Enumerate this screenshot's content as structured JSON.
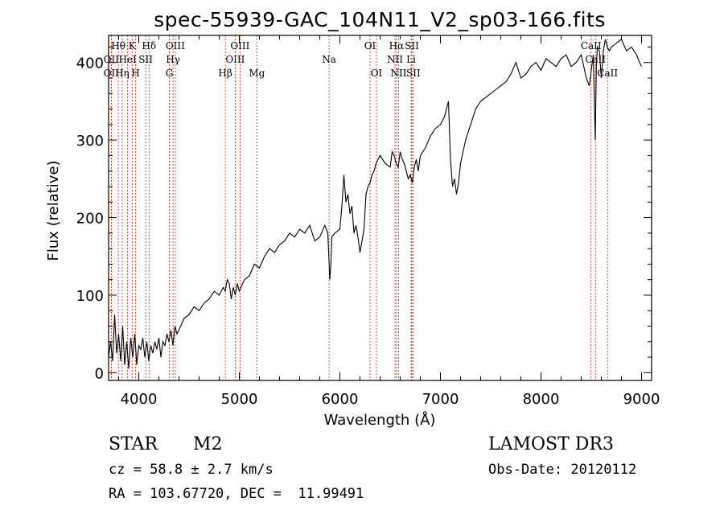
{
  "chart_data": {
    "type": "line",
    "title": "spec-55939-GAC_104N11_V2_sp03-166.fits",
    "xlabel": "Wavelength (Å)",
    "ylabel": "Flux (relative)",
    "xlim": [
      3700,
      9100
    ],
    "ylim": [
      -10,
      435
    ],
    "xticks": [
      4000,
      5000,
      6000,
      7000,
      8000,
      9000
    ],
    "yticks": [
      0,
      100,
      200,
      300,
      400
    ],
    "series": [
      {
        "name": "flux",
        "x": [
          3700,
          3720,
          3740,
          3760,
          3780,
          3800,
          3820,
          3840,
          3860,
          3880,
          3900,
          3920,
          3940,
          3960,
          3980,
          4000,
          4020,
          4040,
          4060,
          4080,
          4100,
          4120,
          4140,
          4160,
          4180,
          4200,
          4220,
          4240,
          4260,
          4280,
          4300,
          4320,
          4340,
          4360,
          4380,
          4400,
          4450,
          4500,
          4550,
          4600,
          4650,
          4700,
          4750,
          4800,
          4840,
          4860,
          4880,
          4900,
          4920,
          4940,
          4960,
          4980,
          5000,
          5050,
          5100,
          5150,
          5200,
          5250,
          5300,
          5350,
          5400,
          5450,
          5500,
          5550,
          5600,
          5650,
          5700,
          5750,
          5800,
          5850,
          5880,
          5900,
          5910,
          5920,
          5950,
          6000,
          6020,
          6040,
          6060,
          6080,
          6100,
          6120,
          6140,
          6160,
          6180,
          6200,
          6220,
          6240,
          6260,
          6280,
          6300,
          6320,
          6340,
          6360,
          6380,
          6400,
          6450,
          6500,
          6520,
          6540,
          6560,
          6580,
          6600,
          6620,
          6640,
          6660,
          6680,
          6700,
          6720,
          6740,
          6760,
          6780,
          6800,
          6850,
          6900,
          6950,
          7000,
          7020,
          7040,
          7060,
          7080,
          7100,
          7120,
          7140,
          7160,
          7180,
          7200,
          7250,
          7300,
          7350,
          7400,
          7450,
          7500,
          7550,
          7600,
          7650,
          7700,
          7750,
          7800,
          7850,
          7900,
          7950,
          8000,
          8050,
          8100,
          8150,
          8200,
          8250,
          8300,
          8350,
          8400,
          8450,
          8480,
          8500,
          8520,
          8540,
          8550,
          8560,
          8580,
          8600,
          8620,
          8640,
          8660,
          8680,
          8700,
          8750,
          8800,
          8850,
          8900,
          8950,
          8980,
          9000
        ],
        "values": [
          20,
          40,
          15,
          75,
          25,
          50,
          15,
          60,
          10,
          40,
          5,
          45,
          20,
          50,
          10,
          35,
          30,
          45,
          20,
          40,
          15,
          35,
          25,
          40,
          30,
          45,
          20,
          40,
          35,
          50,
          40,
          55,
          35,
          60,
          50,
          55,
          70,
          75,
          85,
          80,
          90,
          95,
          105,
          100,
          110,
          105,
          120,
          115,
          95,
          110,
          100,
          115,
          105,
          120,
          125,
          140,
          135,
          150,
          160,
          155,
          165,
          170,
          180,
          175,
          185,
          180,
          190,
          170,
          175,
          190,
          180,
          120,
          140,
          175,
          180,
          185,
          215,
          255,
          220,
          230,
          205,
          215,
          180,
          190,
          175,
          155,
          170,
          185,
          230,
          240,
          245,
          255,
          260,
          270,
          275,
          280,
          270,
          265,
          285,
          280,
          270,
          265,
          285,
          275,
          270,
          260,
          250,
          255,
          245,
          265,
          275,
          260,
          280,
          290,
          305,
          315,
          320,
          325,
          330,
          340,
          350,
          275,
          240,
          250,
          230,
          245,
          270,
          300,
          320,
          340,
          350,
          355,
          360,
          365,
          370,
          375,
          385,
          400,
          380,
          385,
          395,
          400,
          390,
          405,
          400,
          395,
          405,
          410,
          395,
          400,
          410,
          380,
          370,
          390,
          410,
          300,
          395,
          420,
          415,
          380,
          415,
          430,
          420,
          415,
          420,
          425,
          430,
          415,
          420,
          410,
          400,
          395
        ]
      }
    ],
    "spectral_lines": [
      {
        "label": "Hθ",
        "x": 3797,
        "row": 1
      },
      {
        "label": "K",
        "x": 3934,
        "row": 1
      },
      {
        "label": "Hδ",
        "x": 4102,
        "row": 1
      },
      {
        "label": "OII",
        "x": 3727,
        "row": 2
      },
      {
        "label": "HeI",
        "x": 3889,
        "row": 2
      },
      {
        "label": "SII",
        "x": 4069,
        "row": 2
      },
      {
        "label": "OII",
        "x": 3727,
        "row": 3
      },
      {
        "label": "Hη",
        "x": 3835,
        "row": 3
      },
      {
        "label": "H",
        "x": 3968,
        "row": 3
      },
      {
        "label": "OIII",
        "x": 4363,
        "row": 1
      },
      {
        "label": "Hγ",
        "x": 4341,
        "row": 2
      },
      {
        "label": "G",
        "x": 4304,
        "row": 3
      },
      {
        "label": "Hβ",
        "x": 4861,
        "row": 3
      },
      {
        "label": "OIII",
        "x": 5007,
        "row": 1
      },
      {
        "label": "OIII",
        "x": 4959,
        "row": 2
      },
      {
        "label": "Mg",
        "x": 5175,
        "row": 3
      },
      {
        "label": "Na",
        "x": 5893,
        "row": 2
      },
      {
        "label": "OI",
        "x": 6300,
        "row": 1
      },
      {
        "label": "OI",
        "x": 6364,
        "row": 3
      },
      {
        "label": "Hα",
        "x": 6563,
        "row": 1
      },
      {
        "label": "SII",
        "x": 6716,
        "row": 1
      },
      {
        "label": "NII",
        "x": 6548,
        "row": 2
      },
      {
        "label": "Li",
        "x": 6708,
        "row": 2
      },
      {
        "label": "NII",
        "x": 6584,
        "row": 3
      },
      {
        "label": "SII",
        "x": 6731,
        "row": 3
      },
      {
        "label": "CaII",
        "x": 8498,
        "row": 1
      },
      {
        "label": "CaII",
        "x": 8542,
        "row": 2
      },
      {
        "label": "CaII",
        "x": 8662,
        "row": 3
      }
    ],
    "line_color": "#cc2200"
  },
  "info": {
    "class": "STAR",
    "subclass": "M2",
    "survey": "LAMOST DR3",
    "cz": "cz = 58.8 ± 2.7 km/s",
    "obs_date": "Obs-Date: 20120112",
    "coords": "RA = 103.67720, DEC =  11.99491"
  }
}
